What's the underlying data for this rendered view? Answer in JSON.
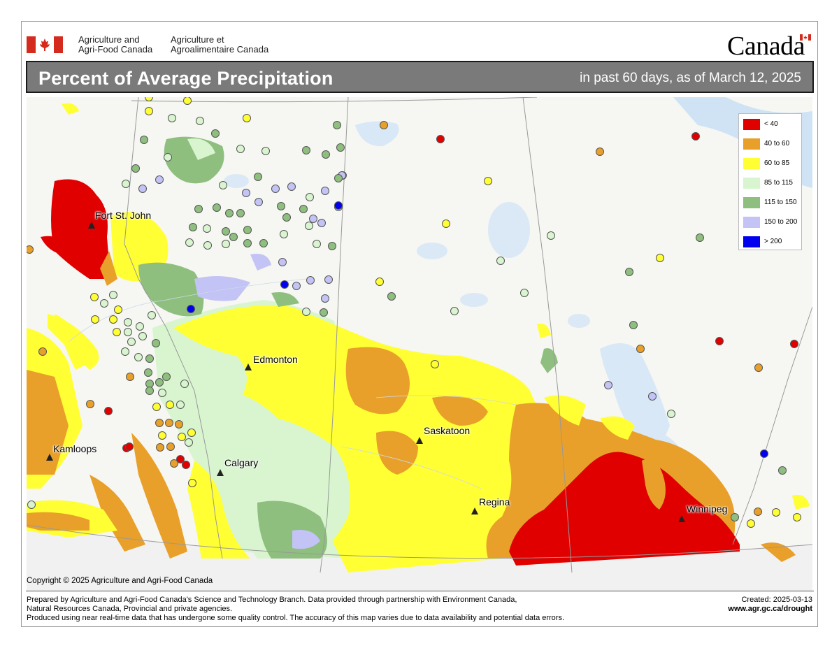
{
  "header": {
    "dept_en_line1": "Agriculture and",
    "dept_en_line2": "Agri-Food Canada",
    "dept_fr_line1": "Agriculture et",
    "dept_fr_line2": "Agroalimentaire Canada",
    "wordmark": "Canada"
  },
  "title_bar": {
    "title": "Percent of Average Precipitation",
    "subtitle": "in past 60 days, as of March 12, 2025"
  },
  "legend": {
    "items": [
      {
        "label": "< 40",
        "color": "#e00000"
      },
      {
        "label": "40 to 60",
        "color": "#e8a02a"
      },
      {
        "label": "60 to 85",
        "color": "#ffff33"
      },
      {
        "label": "85 to 115",
        "color": "#d9f5cf"
      },
      {
        "label": "115 to 150",
        "color": "#8fbf7f"
      },
      {
        "label": "150 to 200",
        "color": "#c3c3f5"
      },
      {
        "label": "> 200",
        "color": "#0000ee"
      }
    ]
  },
  "cities": {
    "fort_st_john": "Fort St. John",
    "edmonton": "Edmonton",
    "kamloops": "Kamloops",
    "calgary": "Calgary",
    "saskatoon": "Saskatoon",
    "regina": "Regina",
    "winnipeg": "Winnipeg"
  },
  "map_copyright": "Copyright © 2025 Agriculture and Agri-Food Canada",
  "footer": {
    "line1": "Prepared by Agriculture and Agri-Food Canada's Science and Technology Branch. Data provided through partnership with Environment Canada,",
    "line2": "Natural Resources Canada, Provincial and private agencies.",
    "line3": "Produced using near real-time data that has undergone some quality control. The accuracy of this map varies due to data availability and potential data errors.",
    "created": "Created: 2025-03-13",
    "url": "www.agr.gc.ca/drought"
  },
  "colors": {
    "red": "#e00000",
    "orange": "#e8a02a",
    "yellow": "#ffff33",
    "light_green": "#d9f5cf",
    "green": "#8fbf7f",
    "lavender": "#c3c3f5",
    "blue": "#0000ee",
    "water": "#cfe3f5",
    "header_gray": "#7a7a7a"
  }
}
